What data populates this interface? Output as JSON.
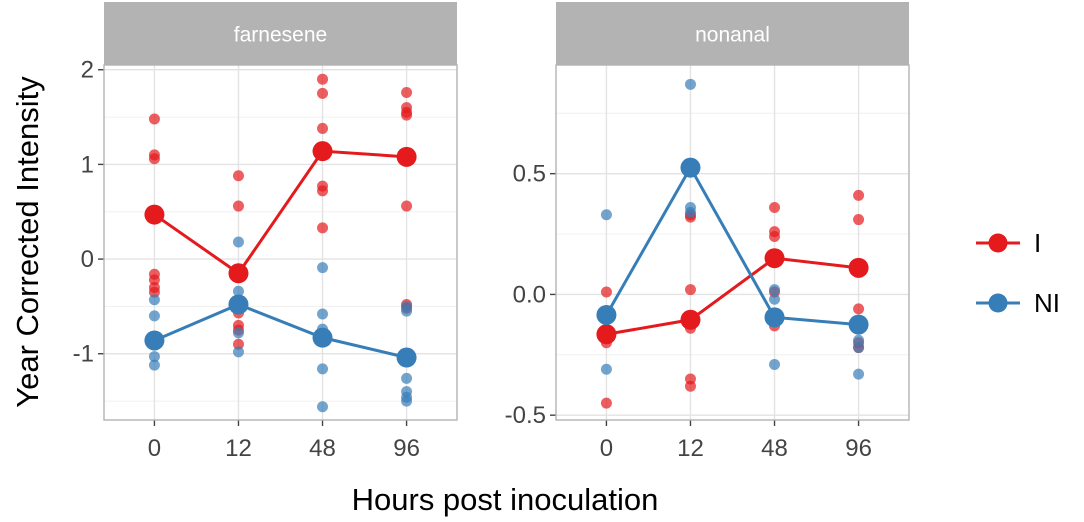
{
  "chart_data": {
    "type": "scatter",
    "xlabel": "Hours post inoculation",
    "ylabel": "Year Corrected Intensity",
    "x_categories": [
      "0",
      "12",
      "48",
      "96"
    ],
    "legend": {
      "position": "right",
      "entries": [
        {
          "label": "I",
          "color": "#e41a1c"
        },
        {
          "label": "NI",
          "color": "#377eb8"
        }
      ]
    },
    "panels": [
      {
        "title": "farnesene",
        "ylim": [
          -1.7,
          2.05
        ],
        "yticks": [
          -1,
          0,
          1,
          2
        ],
        "ytick_labels": [
          "-1",
          "0",
          "1",
          "2"
        ],
        "series": [
          {
            "name": "I",
            "color": "#e41a1c",
            "means": [
              0.47,
              -0.15,
              1.14,
              1.08
            ],
            "points": [
              [
                1.48,
                1.1,
                1.06,
                -0.16,
                -0.22,
                -0.3,
                -0.35
              ],
              [
                0.88,
                0.56,
                -0.57,
                -0.7,
                -0.75,
                -0.9
              ],
              [
                1.9,
                1.75,
                1.38,
                0.77,
                0.72,
                0.33
              ],
              [
                1.76,
                1.6,
                1.55,
                1.52,
                0.56,
                -0.48,
                -0.52
              ]
            ]
          },
          {
            "name": "NI",
            "color": "#377eb8",
            "means": [
              -0.86,
              -0.48,
              -0.83,
              -1.04
            ],
            "points": [
              [
                -0.43,
                -0.6,
                -1.03,
                -1.12
              ],
              [
                0.18,
                -0.34,
                -0.48,
                -0.78,
                -0.98
              ],
              [
                -0.09,
                -0.58,
                -0.74,
                -0.79,
                -1.16,
                -1.56
              ],
              [
                -0.5,
                -0.55,
                -1.26,
                -1.4,
                -1.46,
                -1.5
              ]
            ]
          }
        ]
      },
      {
        "title": "nonanal",
        "ylim": [
          -0.52,
          0.95
        ],
        "yticks": [
          -0.5,
          0.0,
          0.5
        ],
        "ytick_labels": [
          "-0.5",
          "0.0",
          "0.5"
        ],
        "series": [
          {
            "name": "I",
            "color": "#e41a1c",
            "means": [
              -0.165,
              -0.105,
              0.15,
              0.11
            ],
            "points": [
              [
                0.01,
                -0.07,
                -0.17,
                -0.2,
                -0.45
              ],
              [
                0.33,
                0.32,
                0.02,
                -0.14,
                -0.35,
                -0.38
              ],
              [
                0.36,
                0.26,
                0.24,
                0.01,
                -0.13
              ],
              [
                0.41,
                0.31,
                -0.06,
                -0.2,
                -0.22
              ]
            ]
          },
          {
            "name": "NI",
            "color": "#377eb8",
            "means": [
              -0.085,
              0.525,
              -0.095,
              -0.125
            ],
            "points": [
              [
                0.33,
                -0.1,
                -0.31
              ],
              [
                0.87,
                0.36,
                0.34
              ],
              [
                0.02,
                -0.02,
                -0.29
              ],
              [
                -0.19,
                -0.22,
                -0.33
              ]
            ]
          }
        ]
      }
    ]
  }
}
